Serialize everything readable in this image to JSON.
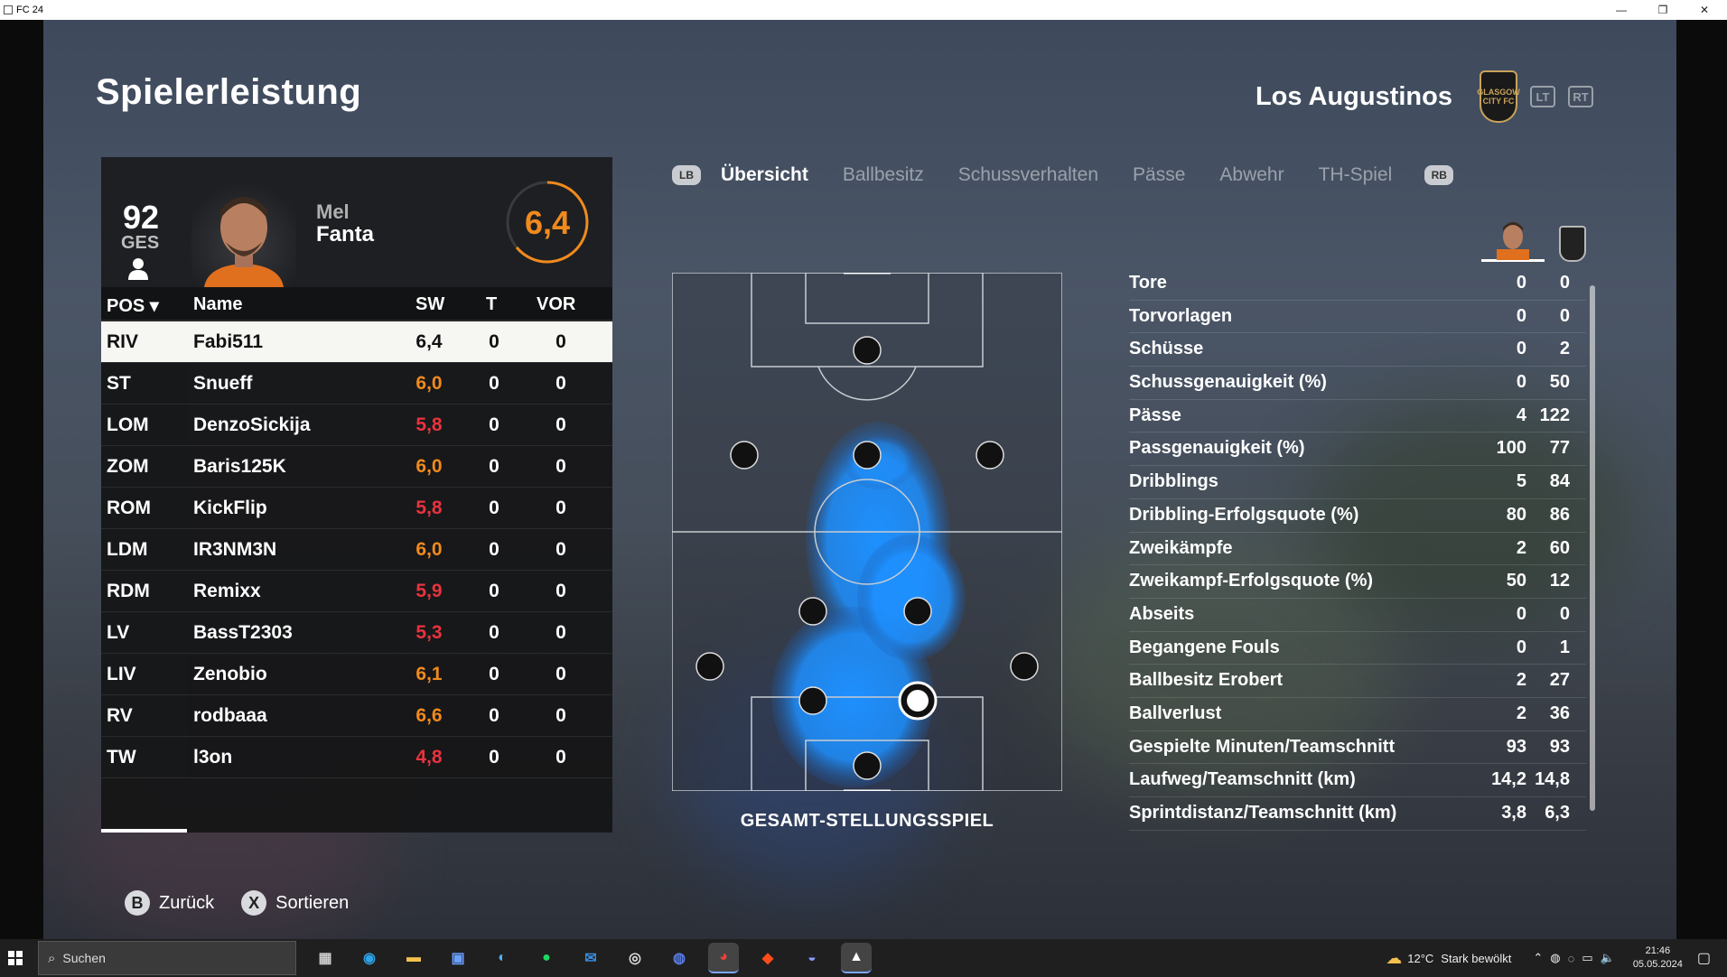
{
  "window": {
    "title": "FC 24",
    "minimize": "—",
    "maximize": "❐",
    "close": "✕"
  },
  "page": {
    "title": "Spielerleistung"
  },
  "team": {
    "name": "Los Augustinos",
    "crest_text": "GLASGOW CITY FC",
    "lt": "LT",
    "rt": "RT"
  },
  "player": {
    "ovr": "92",
    "ovr_label": "GES",
    "first_name": "Mel",
    "last_name": "Fanta",
    "rating": "6,4",
    "rating_color": "#f08a1d"
  },
  "table": {
    "headers": {
      "pos": "POS ▾",
      "name": "Name",
      "sw": "SW",
      "t": "T",
      "vor": "VOR"
    },
    "rows": [
      {
        "pos": "RIV",
        "name": "Fabi511",
        "sw": "6,4",
        "t": "0",
        "vor": "0",
        "tone": "white"
      },
      {
        "pos": "ST",
        "name": "Snueff",
        "sw": "6,0",
        "t": "0",
        "vor": "0",
        "tone": "orange"
      },
      {
        "pos": "LOM",
        "name": "DenzoSickija",
        "sw": "5,8",
        "t": "0",
        "vor": "0",
        "tone": "red"
      },
      {
        "pos": "ZOM",
        "name": "Baris125K",
        "sw": "6,0",
        "t": "0",
        "vor": "0",
        "tone": "orange"
      },
      {
        "pos": "ROM",
        "name": "KickFlip",
        "sw": "5,8",
        "t": "0",
        "vor": "0",
        "tone": "red"
      },
      {
        "pos": "LDM",
        "name": "IR3NM3N",
        "sw": "6,0",
        "t": "0",
        "vor": "0",
        "tone": "orange"
      },
      {
        "pos": "RDM",
        "name": "Remixx",
        "sw": "5,9",
        "t": "0",
        "vor": "0",
        "tone": "red"
      },
      {
        "pos": "LV",
        "name": "BassT2303",
        "sw": "5,3",
        "t": "0",
        "vor": "0",
        "tone": "red"
      },
      {
        "pos": "LIV",
        "name": "Zenobio",
        "sw": "6,1",
        "t": "0",
        "vor": "0",
        "tone": "orange"
      },
      {
        "pos": "RV",
        "name": "rodbaaa",
        "sw": "6,6",
        "t": "0",
        "vor": "0",
        "tone": "orange"
      },
      {
        "pos": "TW",
        "name": "l3on",
        "sw": "4,8",
        "t": "0",
        "vor": "0",
        "tone": "red"
      }
    ]
  },
  "tabs": {
    "lb": "LB",
    "rb": "RB",
    "items": [
      "Übersicht",
      "Ballbesitz",
      "Schussverhalten",
      "Pässe",
      "Abwehr",
      "TH-Spiel"
    ]
  },
  "pitch": {
    "caption": "GESAMT-STELLUNGSSPIEL",
    "heat_color": "#1e90ff"
  },
  "stats": [
    {
      "label": "Tore",
      "player": "0",
      "team": "0"
    },
    {
      "label": "Torvorlagen",
      "player": "0",
      "team": "0"
    },
    {
      "label": "Schüsse",
      "player": "0",
      "team": "2"
    },
    {
      "label": "Schussgenauigkeit (%)",
      "player": "0",
      "team": "50"
    },
    {
      "label": "Pässe",
      "player": "4",
      "team": "122"
    },
    {
      "label": "Passgenauigkeit (%)",
      "player": "100",
      "team": "77"
    },
    {
      "label": "Dribblings",
      "player": "5",
      "team": "84"
    },
    {
      "label": "Dribbling-Erfolgsquote (%)",
      "player": "80",
      "team": "86"
    },
    {
      "label": "Zweikämpfe",
      "player": "2",
      "team": "60"
    },
    {
      "label": "Zweikampf-Erfolgsquote (%)",
      "player": "50",
      "team": "12"
    },
    {
      "label": "Abseits",
      "player": "0",
      "team": "0"
    },
    {
      "label": "Begangene Fouls",
      "player": "0",
      "team": "1"
    },
    {
      "label": "Ballbesitz Erobert",
      "player": "2",
      "team": "27"
    },
    {
      "label": "Ballverlust",
      "player": "2",
      "team": "36"
    },
    {
      "label": "Gespielte Minuten/Teamschnitt",
      "player": "93",
      "team": "93"
    },
    {
      "label": "Laufweg/Teamschnitt (km)",
      "player": "14,2",
      "team": "14,8"
    },
    {
      "label": "Sprintdistanz/Teamschnitt (km)",
      "player": "3,8",
      "team": "6,3"
    }
  ],
  "hints": {
    "back_btn": "B",
    "back": "Zurück",
    "sort_btn": "X",
    "sort": "Sortieren"
  },
  "taskbar": {
    "search_placeholder": "Suchen",
    "weather_temp": "12°C",
    "weather_text": "Stark bewölkt",
    "time": "21:46",
    "date": "05.05.2024"
  }
}
